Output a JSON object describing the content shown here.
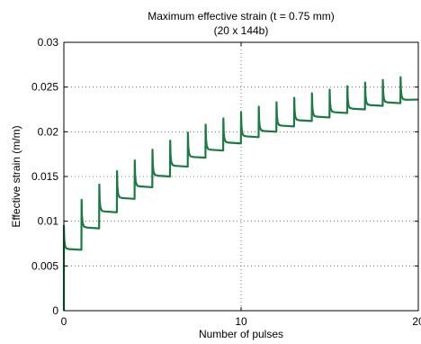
{
  "chart_data": {
    "type": "line",
    "title": "Maximum effective strain (t = 0.75 mm)",
    "subtitle": "(20 x 144b)",
    "xlabel": "Number of pulses",
    "ylabel": "Effective strain (m/m)",
    "xlim": [
      0,
      20
    ],
    "ylim": [
      0,
      0.03
    ],
    "x_ticks": [
      0,
      10,
      20
    ],
    "y_ticks": [
      0,
      0.005,
      0.01,
      0.015,
      0.02,
      0.025,
      0.03
    ],
    "x_tick_labels": [
      "0",
      "10",
      "20"
    ],
    "y_tick_labels": [
      "0",
      "0.005",
      "0.01",
      "0.015",
      "0.02",
      "0.025",
      "0.03"
    ],
    "grid": true,
    "line_color": "#1b7a44",
    "pulses": [
      {
        "x": 0,
        "peak": 0.0095,
        "plateau": 0.0068
      },
      {
        "x": 1,
        "peak": 0.0124,
        "plateau": 0.0092
      },
      {
        "x": 2,
        "peak": 0.0141,
        "plateau": 0.011
      },
      {
        "x": 3,
        "peak": 0.0156,
        "plateau": 0.0125
      },
      {
        "x": 4,
        "peak": 0.0168,
        "plateau": 0.0138
      },
      {
        "x": 5,
        "peak": 0.018,
        "plateau": 0.015
      },
      {
        "x": 6,
        "peak": 0.019,
        "plateau": 0.0161
      },
      {
        "x": 7,
        "peak": 0.0199,
        "plateau": 0.0171
      },
      {
        "x": 8,
        "peak": 0.0208,
        "plateau": 0.0179
      },
      {
        "x": 9,
        "peak": 0.0215,
        "plateau": 0.0187
      },
      {
        "x": 10,
        "peak": 0.0222,
        "plateau": 0.0194
      },
      {
        "x": 11,
        "peak": 0.0228,
        "plateau": 0.02
      },
      {
        "x": 12,
        "peak": 0.0233,
        "plateau": 0.0206
      },
      {
        "x": 13,
        "peak": 0.0238,
        "plateau": 0.0212
      },
      {
        "x": 14,
        "peak": 0.0243,
        "plateau": 0.0216
      },
      {
        "x": 15,
        "peak": 0.0247,
        "plateau": 0.0221
      },
      {
        "x": 16,
        "peak": 0.0251,
        "plateau": 0.0225
      },
      {
        "x": 17,
        "peak": 0.0255,
        "plateau": 0.0229
      },
      {
        "x": 18,
        "peak": 0.0258,
        "plateau": 0.0232
      },
      {
        "x": 19,
        "peak": 0.0261,
        "plateau": 0.0235
      }
    ],
    "end_value": 0.0236
  }
}
